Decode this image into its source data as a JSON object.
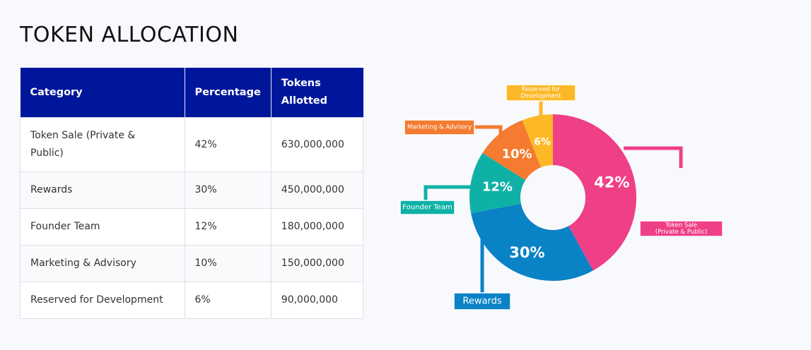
{
  "page": {
    "title": "TOKEN ALLOCATION"
  },
  "table": {
    "headers": [
      "Category",
      "Percentage",
      "Tokens\nAllotted"
    ],
    "rows": [
      [
        "Token Sale (Private & Public)",
        "42%",
        "630,000,000"
      ],
      [
        "Rewards",
        "30%",
        "450,000,000"
      ],
      [
        "Founder Team",
        "12%",
        "180,000,000"
      ],
      [
        "Marketing & Advisory",
        "10%",
        "150,000,000"
      ],
      [
        "Reserved for Development",
        "6%",
        "90,000,000"
      ]
    ]
  },
  "chart_data": {
    "type": "pie",
    "title": "",
    "donut": true,
    "slices": [
      {
        "label": "Token Sale (Private & Public)",
        "callout": [
          "Token Sale",
          "(Private & Public)"
        ],
        "value": 42,
        "value_label": "42%",
        "color": "#ef3f87"
      },
      {
        "label": "Rewards",
        "callout": [
          "Rewards"
        ],
        "value": 30,
        "value_label": "30%",
        "color": "#0a82c6"
      },
      {
        "label": "Founder Team",
        "callout": [
          "Founder Team"
        ],
        "value": 12,
        "value_label": "12%",
        "color": "#0fb1a6"
      },
      {
        "label": "Marketing & Advisory",
        "callout": [
          "Marketing & Advisory"
        ],
        "value": 10,
        "value_label": "10%",
        "color": "#f47b30"
      },
      {
        "label": "Reserved for Development",
        "callout": [
          "Reserved for",
          "Development"
        ],
        "value": 6,
        "value_label": "6%",
        "color": "#fdb827"
      }
    ]
  }
}
